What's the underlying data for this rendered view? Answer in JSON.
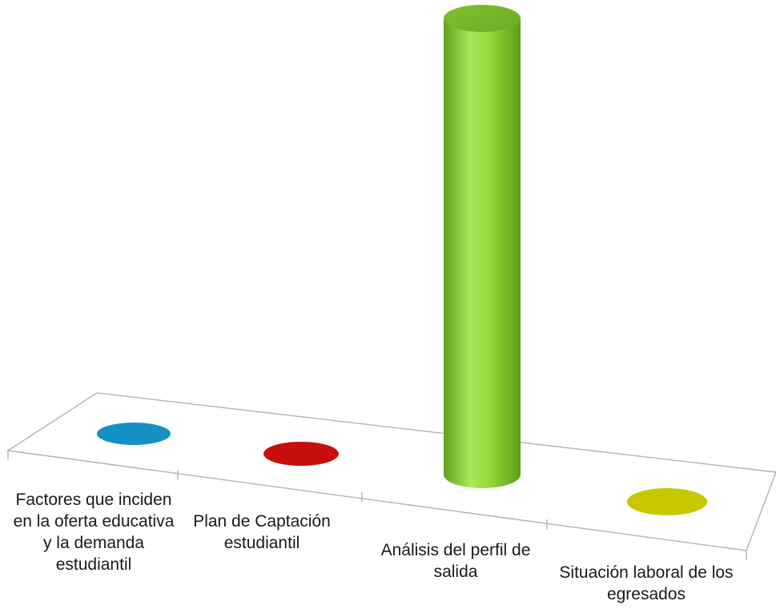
{
  "chart_data": {
    "type": "bar",
    "style": "3d-cylinder",
    "categories": [
      "Factores que inciden en la oferta educativa y la demanda estudiantil",
      "Plan de Captación estudiantil",
      "Análisis del perfil de salida",
      "Situación laboral de los egresados"
    ],
    "values": [
      0,
      0,
      1,
      0
    ],
    "colors": [
      "#1591c6",
      "#c80d0d",
      "#8fd62e",
      "#c8c800"
    ],
    "title": "",
    "xlabel": "",
    "ylabel": "",
    "ylim": [
      0,
      1
    ],
    "grid": false,
    "legend": "none"
  }
}
